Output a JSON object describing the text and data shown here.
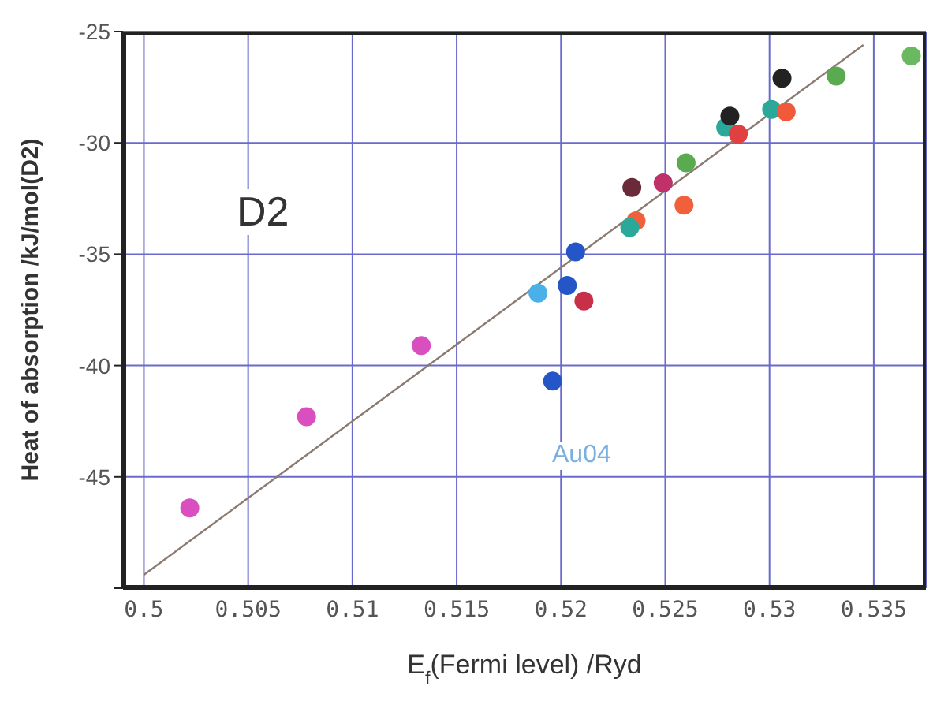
{
  "chart_data": {
    "type": "scatter",
    "xlabel": "E$_{f}$(Fermi level) /Ryd",
    "ylabel": "Heat of absorption /kJ/mol(D2)",
    "annotations": [
      "D2",
      "Au04"
    ],
    "xlim": [
      0.499,
      0.5375
    ],
    "ylim": [
      -50,
      -25
    ],
    "xticks": [
      0.5,
      0.505,
      0.51,
      0.515,
      0.52,
      0.525,
      0.53,
      0.535
    ],
    "yticks": [
      {
        "value": -50,
        "label": null
      },
      -45,
      -40,
      -35,
      -30,
      -25
    ],
    "grid": true,
    "marker": "circle",
    "series": [
      {
        "x": [
          0.5022,
          0.5078,
          0.5133,
          0.5189,
          0.5196,
          0.5203,
          0.5207,
          0.5211,
          0.5236,
          0.5233,
          0.5234,
          0.5249,
          0.526,
          0.5259,
          0.5279,
          0.5281,
          0.5285,
          0.5301,
          0.5308,
          0.5306,
          0.5332,
          0.5368
        ],
        "values": [
          -46.4,
          -42.3,
          -39.1,
          -36.75,
          -40.7,
          -36.4,
          -34.9,
          -37.1,
          -33.5,
          -33.8,
          -32.0,
          -31.8,
          -30.9,
          -32.8,
          -29.3,
          -28.8,
          -29.6,
          -28.5,
          -28.6,
          -27.1,
          -27.0,
          -26.1
        ],
        "colors": [
          "#d94fc0",
          "#d94fc0",
          "#d94fc0",
          "#4ab0e8",
          "#2456c8",
          "#2456c8",
          "#2456c8",
          "#c8304a",
          "#f0603a",
          "#2aa89a",
          "#6a2a3a",
          "#c0306a",
          "#5aaa50",
          "#f0603a",
          "#2aa89a",
          "#222222",
          "#e04040",
          "#2aa89a",
          "#f05a3a",
          "#222222",
          "#5aaa50",
          "#6ab860"
        ]
      },
      {
        "type": "line",
        "x": [
          0.5,
          0.5345
        ],
        "values": [
          -49.4,
          -25.6
        ],
        "color": "#8a7a70",
        "line_style": "solid",
        "marker": "none"
      }
    ]
  }
}
